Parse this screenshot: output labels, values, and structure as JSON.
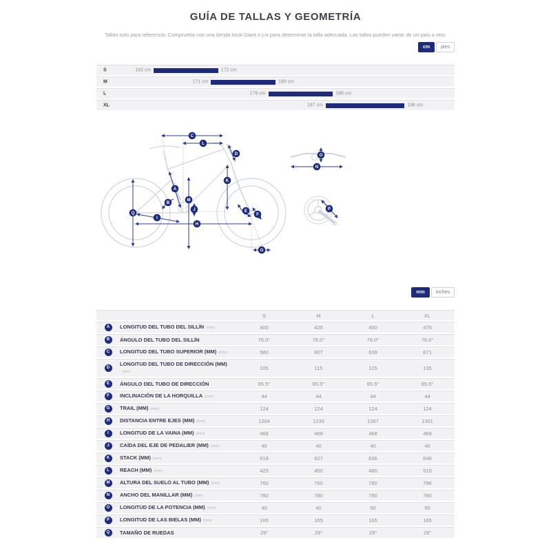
{
  "page": {
    "title": "GUÍA DE TALLAS Y GEOMETRÍA",
    "subtitle": "Tallas solo para referencia. Comprueba con una tienda local Giant o Liv para determinar la talla adecuada. Las tallas pueden variar de un país a otro."
  },
  "colors": {
    "accent": "#1e2b7d",
    "measure_line": "#2e3c8e",
    "bike_outline": "#cfd5de",
    "row_bg": "#f2f2f4"
  },
  "unit_toggles": {
    "height": {
      "options": [
        "cm",
        "pies"
      ],
      "selected": "cm"
    },
    "geometry": {
      "options": [
        "mm",
        "inches"
      ],
      "selected": "mm"
    }
  },
  "chart_data": {
    "type": "bar",
    "orientation": "horizontal-range",
    "unit": "cm",
    "axis_range": [
      155,
      205
    ],
    "rows": [
      {
        "size": "S",
        "min": 163,
        "max": 172,
        "min_label": "163 cm",
        "max_label": "172 cm"
      },
      {
        "size": "M",
        "min": 171,
        "max": 180,
        "min_label": "171 cm",
        "max_label": "180 cm"
      },
      {
        "size": "L",
        "min": 179,
        "max": 188,
        "min_label": "179 cm",
        "max_label": "188 cm"
      },
      {
        "size": "XL",
        "min": 187,
        "max": 198,
        "min_label": "187 cm",
        "max_label": "198 cm"
      }
    ]
  },
  "diagram": {
    "badges": [
      "A",
      "B",
      "C",
      "D",
      "E",
      "F",
      "G",
      "H",
      "I",
      "J",
      "K",
      "L",
      "M",
      "N",
      "O",
      "P",
      "Q"
    ]
  },
  "table": {
    "columns": [
      "S",
      "M",
      "L",
      "XL"
    ],
    "rows": [
      {
        "key": "A",
        "label": "LONGITUD DEL TUBO DEL SILLÍN",
        "suffix": "(mm)",
        "values": [
          "400",
          "425",
          "450",
          "475"
        ]
      },
      {
        "key": "B",
        "label": "ÁNGULO DEL TUBO DEL SILLÍN",
        "suffix": "",
        "values": [
          "76.0°",
          "76.0°",
          "76.0°",
          "76.0°"
        ]
      },
      {
        "key": "C",
        "label": "LONGITUD DEL TUBO SUPERIOR (MM)",
        "suffix": "(mm)",
        "values": [
          "580",
          "607",
          "639",
          "671"
        ]
      },
      {
        "key": "D",
        "label": "LONGITUD DEL TUBO DE DIRECCIÓN (MM)",
        "suffix": "(mm)",
        "values": [
          "105",
          "115",
          "125",
          "135"
        ]
      },
      {
        "key": "E",
        "label": "ÁNGULO DEL TUBO DE DIRECCIÓN",
        "suffix": "",
        "values": [
          "65.5°",
          "65.5°",
          "65.5°",
          "65.5°"
        ]
      },
      {
        "key": "F",
        "label": "INCLINACIÓN DE LA HORQUILLA",
        "suffix": "(mm)",
        "values": [
          "44",
          "44",
          "44",
          "44"
        ]
      },
      {
        "key": "G",
        "label": "TRAIL (MM)",
        "suffix": "(mm)",
        "values": [
          "124",
          "124",
          "124",
          "124"
        ]
      },
      {
        "key": "H",
        "label": "DISTANCIA ENTRE EJES (MM)",
        "suffix": "(mm)",
        "values": [
          "1204",
          "1233",
          "1267",
          "1301"
        ]
      },
      {
        "key": "I",
        "label": "LONGITUD DE LA VAINA (MM)",
        "suffix": "(mm)",
        "values": [
          "468",
          "468",
          "468",
          "468"
        ]
      },
      {
        "key": "J",
        "label": "CAÍDA DEL EJE DE PEDALIER (MM)",
        "suffix": "(mm)",
        "values": [
          "40",
          "40",
          "40",
          "40"
        ]
      },
      {
        "key": "K",
        "label": "STACK (MM)",
        "suffix": "(mm)",
        "values": [
          "618",
          "627",
          "636",
          "646"
        ]
      },
      {
        "key": "L",
        "label": "REACH (MM)",
        "suffix": "(mm)",
        "values": [
          "425",
          "450",
          "480",
          "510"
        ]
      },
      {
        "key": "M",
        "label": "ALTURA DEL SUELO AL TUBO (MM)",
        "suffix": "(mm)",
        "values": [
          "760",
          "760",
          "780",
          "796"
        ]
      },
      {
        "key": "N",
        "label": "ANCHO DEL MANILLAR (MM)",
        "suffix": "(mm)",
        "values": [
          "780",
          "780",
          "780",
          "780"
        ]
      },
      {
        "key": "O",
        "label": "LONGITUD DE LA POTENCIA (MM)",
        "suffix": "(mm)",
        "values": [
          "40",
          "40",
          "50",
          "50"
        ]
      },
      {
        "key": "P",
        "label": "LONGITUD DE LAS BIELAS (MM)",
        "suffix": "(mm)",
        "values": [
          "165",
          "165",
          "165",
          "165"
        ]
      },
      {
        "key": "Q",
        "label": "TAMAÑO DE RUEDAS",
        "suffix": "",
        "values": [
          "29\"",
          "29\"",
          "29\"",
          "29\""
        ]
      }
    ]
  }
}
